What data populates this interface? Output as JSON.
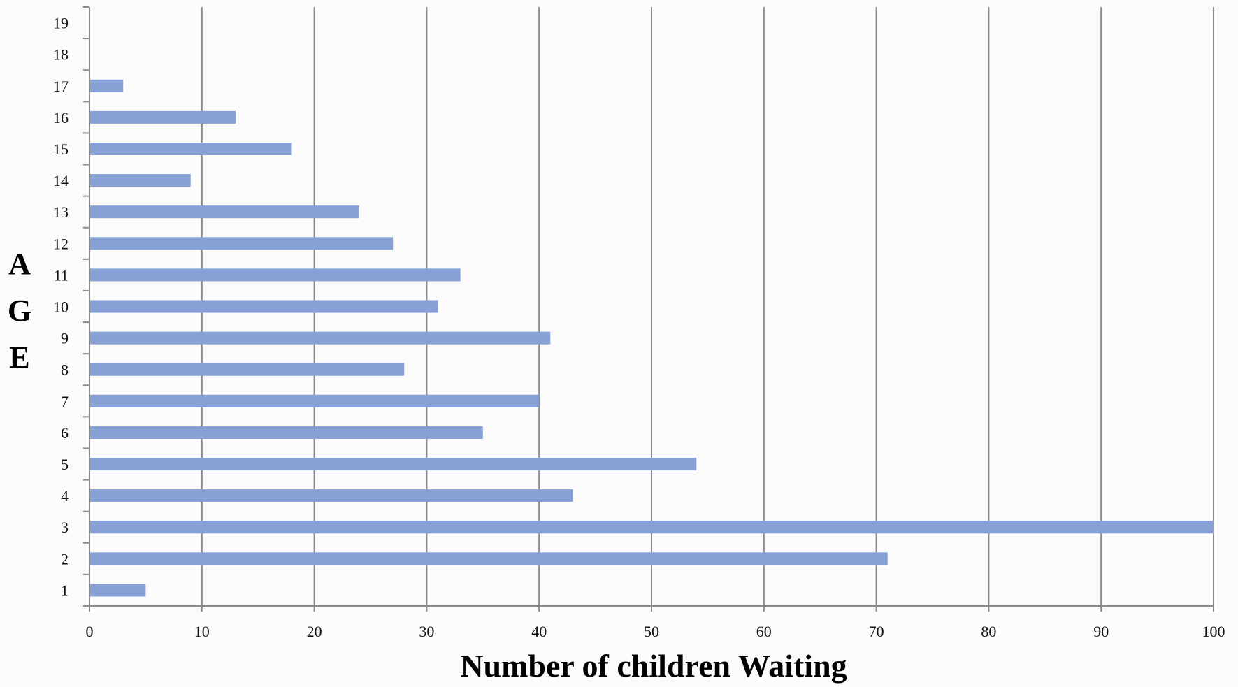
{
  "chart_data": {
    "type": "bar",
    "orientation": "horizontal",
    "categories": [
      "1",
      "2",
      "3",
      "4",
      "5",
      "6",
      "7",
      "8",
      "9",
      "10",
      "11",
      "12",
      "13",
      "14",
      "15",
      "16",
      "17",
      "18",
      "19"
    ],
    "values": [
      5,
      71,
      100,
      43,
      54,
      35,
      40,
      28,
      41,
      31,
      33,
      27,
      24,
      9,
      18,
      13,
      3,
      0,
      0
    ],
    "xlabel": "Number of children Waiting",
    "ylabel": "AGE",
    "ylabel_letters": [
      "A",
      "G",
      "E"
    ],
    "xlim": [
      0,
      100
    ],
    "xticks": [
      "0",
      "10",
      "20",
      "30",
      "40",
      "50",
      "60",
      "70",
      "80",
      "90",
      "100"
    ],
    "grid": "vertical",
    "legend": "none",
    "colors": {
      "bar": "#87a1d7",
      "grid": "#8a8a8a",
      "axis": "#8a8a8a"
    }
  }
}
